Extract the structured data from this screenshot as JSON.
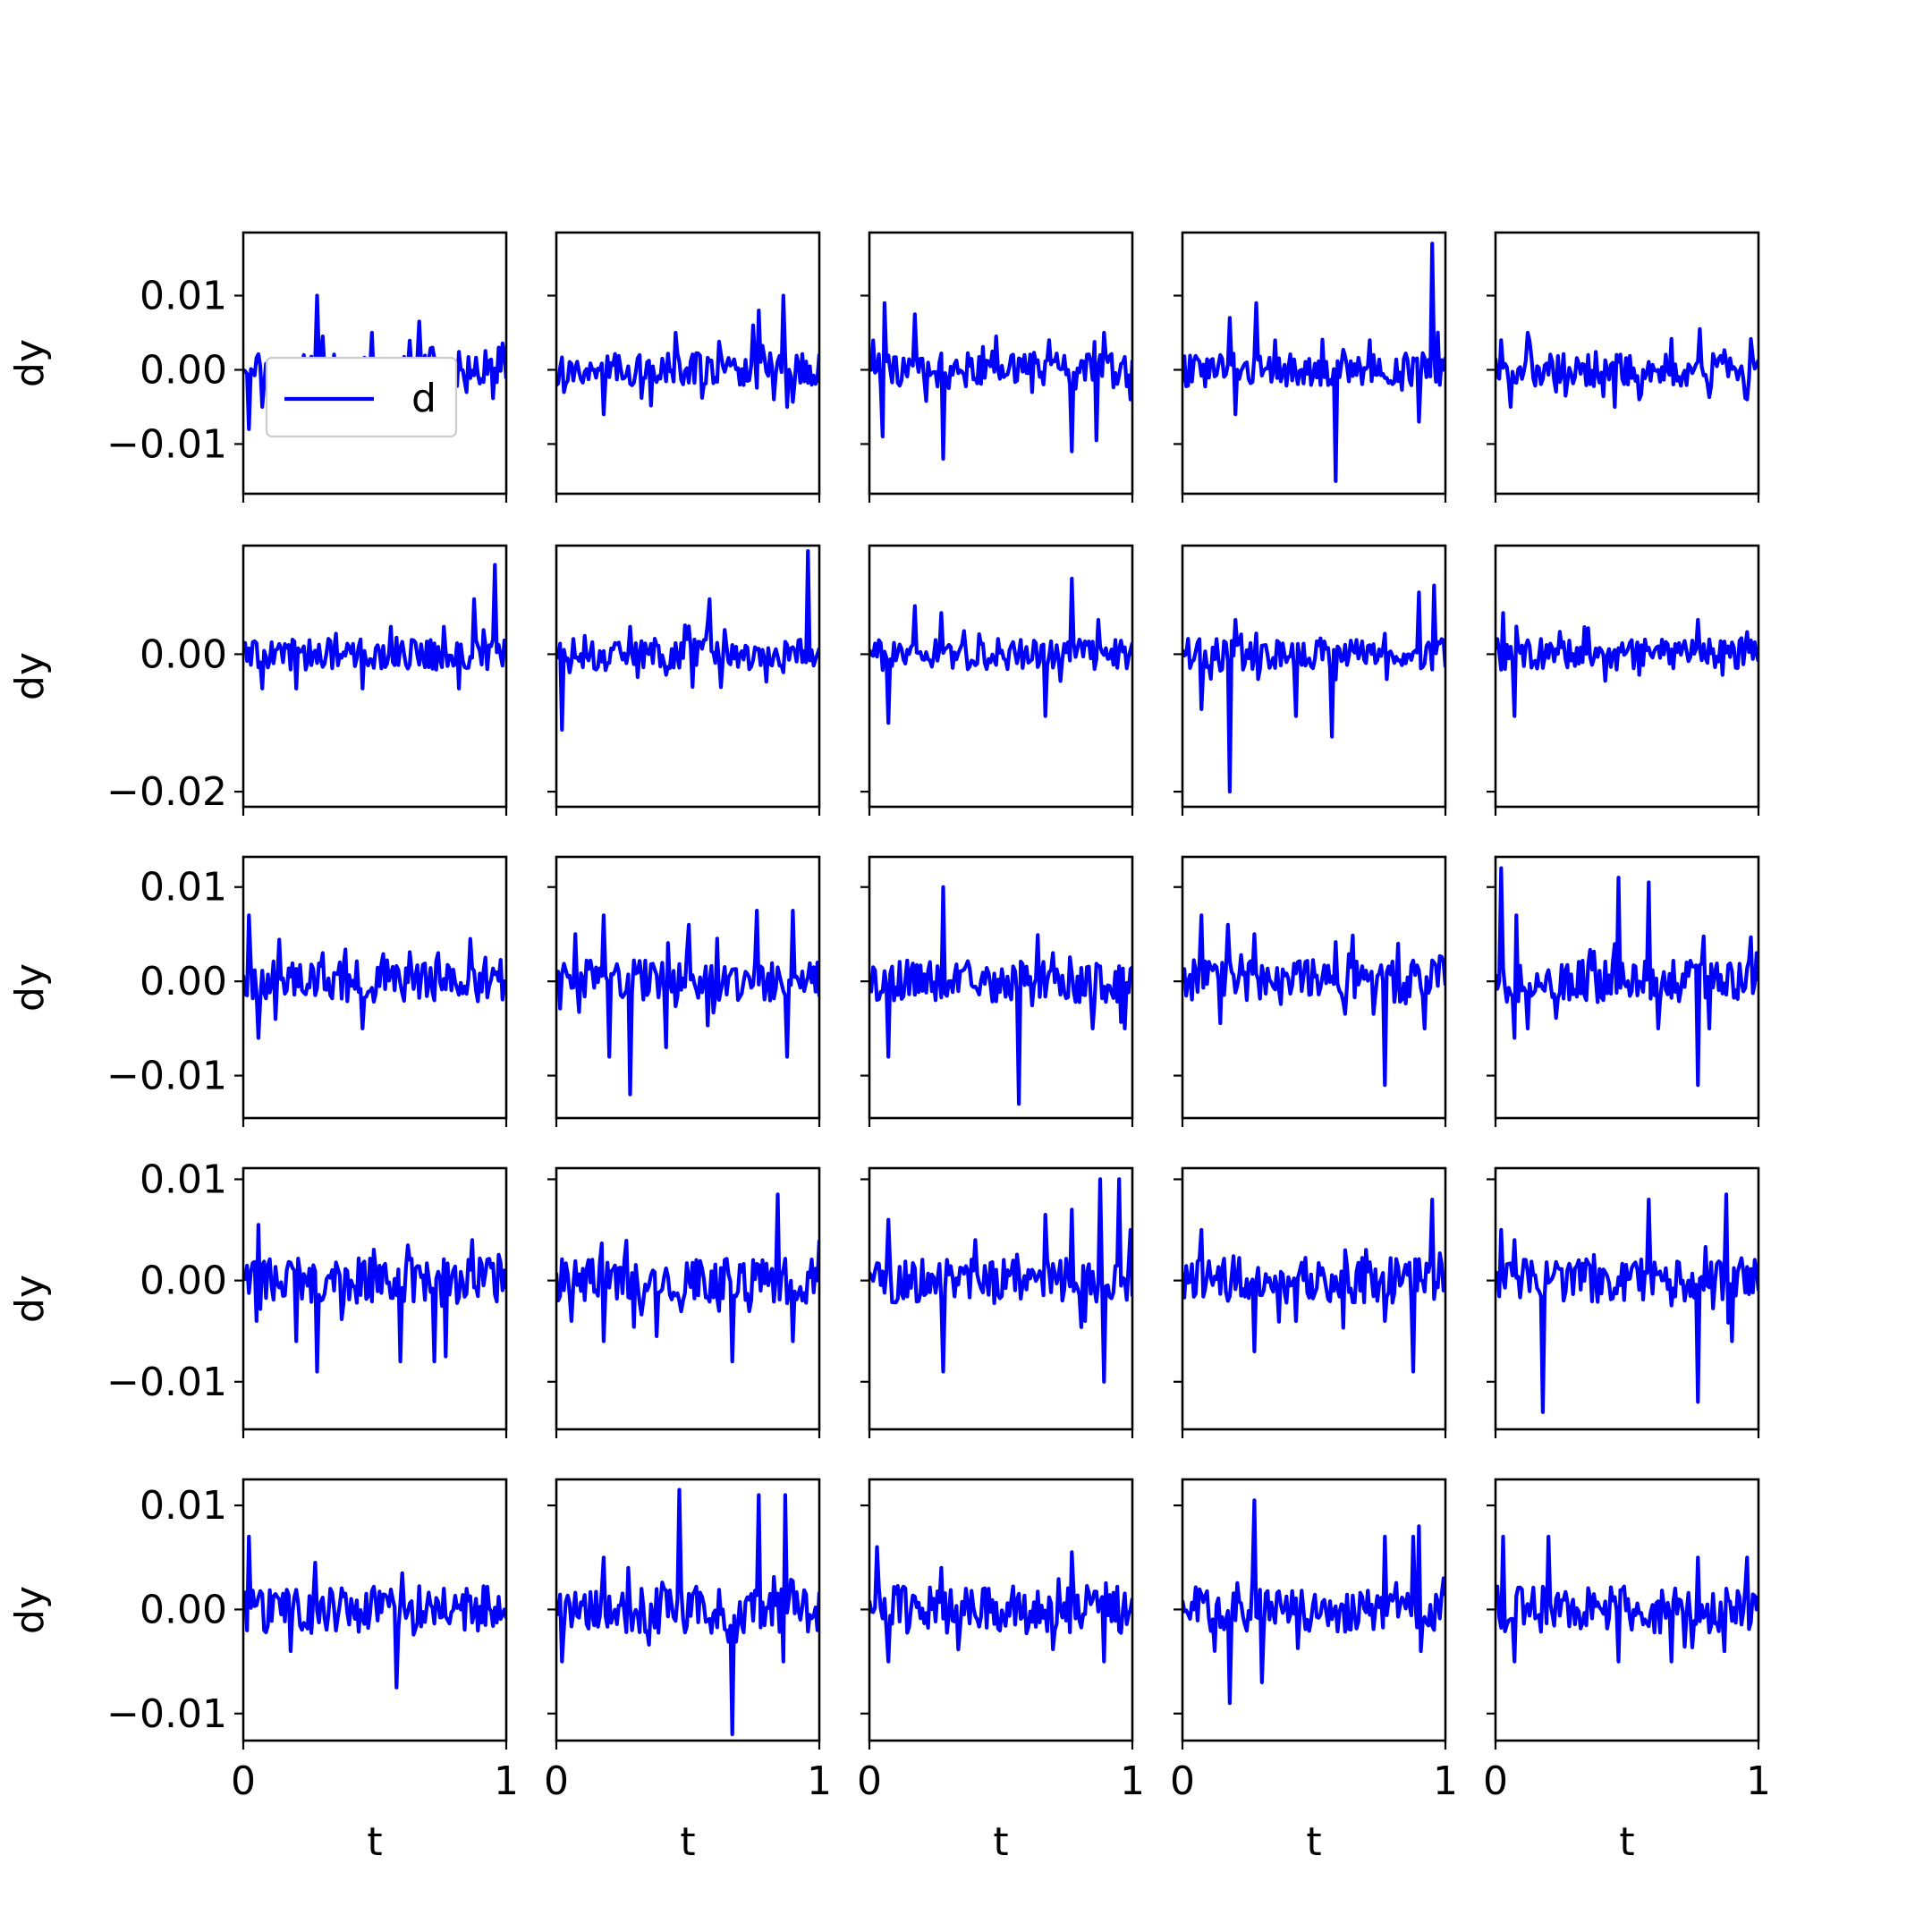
{
  "figure": {
    "xlabel": "t",
    "ylabel": "dy",
    "legend_label": "d",
    "line_color": "#0000ff"
  },
  "chart_data": {
    "type": "line",
    "layout": "5x5 grid of subplots, shared x and y axes within each row",
    "xlabel": "t",
    "ylabel": "dy",
    "xlim": [
      0,
      1
    ],
    "xticks": [
      0,
      1
    ],
    "xtick_labels": [
      "0",
      "1"
    ],
    "legend": {
      "entries": [
        "d"
      ],
      "location": "lower-left of top-left subplot"
    },
    "rows": [
      {
        "ylim": [
          -0.0167,
          0.0185
        ],
        "yticks": [
          -0.01,
          0.0,
          0.01
        ],
        "ytick_labels": [
          "−0.01",
          "0.00",
          "0.01"
        ]
      },
      {
        "ylim": [
          -0.0222,
          0.0158
        ],
        "yticks": [
          -0.02,
          0.0
        ],
        "ytick_labels": [
          "−0.02",
          "0.00"
        ]
      },
      {
        "ylim": [
          -0.0145,
          0.0132
        ],
        "yticks": [
          -0.01,
          0.0,
          0.01
        ],
        "ytick_labels": [
          "−0.01",
          "0.00",
          "0.01"
        ]
      },
      {
        "ylim": [
          -0.0147,
          0.0111
        ],
        "yticks": [
          -0.01,
          0.0,
          0.01
        ],
        "ytick_labels": [
          "−0.01",
          "0.00",
          "0.01"
        ]
      },
      {
        "ylim": [
          -0.0126,
          0.0125
        ],
        "yticks": [
          -0.01,
          0.0,
          0.01
        ],
        "ytick_labels": [
          "−0.01",
          "0.00",
          "0.01"
        ]
      }
    ],
    "series": [
      {
        "row": 0,
        "col": 0,
        "name": "d",
        "spikes": [
          [
            0.0,
            0.0
          ],
          [
            0.02,
            -0.008
          ],
          [
            0.07,
            -0.005
          ],
          [
            0.17,
            -0.003
          ],
          [
            0.28,
            0.01
          ],
          [
            0.3,
            0.0045
          ],
          [
            0.49,
            0.005
          ],
          [
            0.67,
            0.0065
          ],
          [
            0.72,
            0.003
          ],
          [
            0.85,
            -0.003
          ],
          [
            0.97,
            0.003
          ]
        ]
      },
      {
        "row": 0,
        "col": 1,
        "name": "d",
        "spikes": [
          [
            0.03,
            -0.003
          ],
          [
            0.18,
            -0.006
          ],
          [
            0.45,
            0.005
          ],
          [
            0.7,
            -0.002
          ],
          [
            0.75,
            0.006
          ],
          [
            0.77,
            0.008
          ],
          [
            0.83,
            -0.004
          ],
          [
            0.86,
            0.01
          ],
          [
            0.88,
            -0.005
          ],
          [
            0.97,
            -0.002
          ]
        ]
      },
      {
        "row": 0,
        "col": 2,
        "name": "d",
        "spikes": [
          [
            0.06,
            0.009
          ],
          [
            0.05,
            -0.009
          ],
          [
            0.17,
            0.0075
          ],
          [
            0.28,
            -0.012
          ],
          [
            0.48,
            0.0045
          ],
          [
            0.62,
            -0.003
          ],
          [
            0.68,
            0.004
          ],
          [
            0.77,
            -0.011
          ],
          [
            0.86,
            -0.0095
          ],
          [
            0.89,
            0.005
          ],
          [
            0.99,
            -0.004
          ]
        ]
      },
      {
        "row": 0,
        "col": 3,
        "name": "d",
        "spikes": [
          [
            0.18,
            0.007
          ],
          [
            0.2,
            -0.006
          ],
          [
            0.28,
            0.009
          ],
          [
            0.58,
            -0.015
          ],
          [
            0.9,
            -0.007
          ],
          [
            0.95,
            0.017
          ],
          [
            0.99,
            0.0
          ]
        ]
      },
      {
        "row": 0,
        "col": 4,
        "name": "d",
        "spikes": [
          [
            0.02,
            0.004
          ],
          [
            0.06,
            -0.005
          ],
          [
            0.12,
            0.005
          ],
          [
            0.45,
            -0.005
          ],
          [
            0.55,
            -0.004
          ],
          [
            0.78,
            0.0055
          ],
          [
            0.96,
            -0.004
          ]
        ]
      },
      {
        "row": 1,
        "col": 0,
        "name": "d",
        "spikes": [
          [
            0.07,
            -0.005
          ],
          [
            0.2,
            -0.005
          ],
          [
            0.35,
            0.003
          ],
          [
            0.45,
            -0.005
          ],
          [
            0.56,
            0.004
          ],
          [
            0.76,
            0.004
          ],
          [
            0.82,
            -0.005
          ],
          [
            0.88,
            0.008
          ],
          [
            0.96,
            0.013
          ],
          [
            0.99,
            0.002
          ]
        ]
      },
      {
        "row": 1,
        "col": 1,
        "name": "d",
        "spikes": [
          [
            0.02,
            -0.011
          ],
          [
            0.28,
            0.004
          ],
          [
            0.42,
            -0.003
          ],
          [
            0.58,
            0.008
          ],
          [
            0.8,
            -0.004
          ],
          [
            0.96,
            0.015
          ],
          [
            0.99,
            0.0
          ]
        ]
      },
      {
        "row": 1,
        "col": 2,
        "name": "d",
        "spikes": [
          [
            0.07,
            -0.01
          ],
          [
            0.17,
            0.007
          ],
          [
            0.27,
            0.006
          ],
          [
            0.32,
            -0.002
          ],
          [
            0.58,
            -0.002
          ],
          [
            0.67,
            -0.009
          ],
          [
            0.77,
            0.011
          ],
          [
            0.87,
            0.005
          ],
          [
            0.97,
            0.001
          ]
        ]
      },
      {
        "row": 1,
        "col": 3,
        "name": "d",
        "spikes": [
          [
            0.07,
            -0.008
          ],
          [
            0.18,
            -0.02
          ],
          [
            0.2,
            0.005
          ],
          [
            0.43,
            -0.009
          ],
          [
            0.57,
            -0.012
          ],
          [
            0.77,
            0.003
          ],
          [
            0.9,
            0.009
          ],
          [
            0.96,
            0.01
          ],
          [
            0.99,
            0.002
          ]
        ]
      },
      {
        "row": 1,
        "col": 4,
        "name": "d",
        "spikes": [
          [
            0.03,
            0.006
          ],
          [
            0.07,
            -0.009
          ],
          [
            0.18,
            -0.002
          ],
          [
            0.55,
            -0.003
          ],
          [
            0.77,
            0.005
          ],
          [
            0.86,
            -0.003
          ],
          [
            0.97,
            0.002
          ]
        ]
      },
      {
        "row": 2,
        "col": 0,
        "name": "d",
        "spikes": [
          [
            0.02,
            0.007
          ],
          [
            0.06,
            -0.006
          ],
          [
            0.12,
            -0.004
          ],
          [
            0.3,
            0.003
          ],
          [
            0.45,
            -0.005
          ],
          [
            0.74,
            0.003
          ],
          [
            0.86,
            0.0045
          ],
          [
            0.99,
            0.0
          ]
        ]
      },
      {
        "row": 2,
        "col": 1,
        "name": "d",
        "spikes": [
          [
            0.07,
            0.005
          ],
          [
            0.18,
            0.007
          ],
          [
            0.2,
            -0.008
          ],
          [
            0.28,
            -0.012
          ],
          [
            0.42,
            -0.007
          ],
          [
            0.5,
            0.006
          ],
          [
            0.76,
            0.0075
          ],
          [
            0.88,
            -0.008
          ],
          [
            0.9,
            0.0075
          ],
          [
            0.99,
            0.002
          ]
        ]
      },
      {
        "row": 2,
        "col": 2,
        "name": "d",
        "spikes": [
          [
            0.07,
            -0.008
          ],
          [
            0.28,
            0.01
          ],
          [
            0.3,
            0.0
          ],
          [
            0.57,
            -0.013
          ],
          [
            0.7,
            0.003
          ],
          [
            0.85,
            -0.005
          ],
          [
            0.97,
            -0.005
          ]
        ]
      },
      {
        "row": 2,
        "col": 3,
        "name": "d",
        "spikes": [
          [
            0.07,
            0.007
          ],
          [
            0.17,
            0.006
          ],
          [
            0.27,
            0.005
          ],
          [
            0.77,
            -0.011
          ],
          [
            0.82,
            0.004
          ],
          [
            0.92,
            -0.005
          ],
          [
            0.99,
            0.002
          ]
        ]
      },
      {
        "row": 2,
        "col": 4,
        "name": "d",
        "spikes": [
          [
            0.02,
            0.012
          ],
          [
            0.07,
            -0.006
          ],
          [
            0.08,
            0.007
          ],
          [
            0.12,
            -0.005
          ],
          [
            0.47,
            0.011
          ],
          [
            0.58,
            0.0105
          ],
          [
            0.62,
            -0.005
          ],
          [
            0.77,
            -0.011
          ],
          [
            0.81,
            -0.005
          ],
          [
            0.99,
            0.003
          ]
        ]
      },
      {
        "row": 3,
        "col": 0,
        "name": "d",
        "spikes": [
          [
            0.06,
            0.0055
          ],
          [
            0.05,
            -0.004
          ],
          [
            0.2,
            -0.006
          ],
          [
            0.28,
            -0.009
          ],
          [
            0.6,
            -0.008
          ],
          [
            0.73,
            -0.008
          ],
          [
            0.77,
            -0.0075
          ],
          [
            0.87,
            0.004
          ],
          [
            0.99,
            0.001
          ]
        ]
      },
      {
        "row": 3,
        "col": 1,
        "name": "d",
        "spikes": [
          [
            0.06,
            -0.004
          ],
          [
            0.18,
            -0.006
          ],
          [
            0.38,
            -0.0055
          ],
          [
            0.62,
            -0.003
          ],
          [
            0.67,
            -0.008
          ],
          [
            0.84,
            0.0085
          ],
          [
            0.9,
            -0.006
          ],
          [
            0.99,
            0.0
          ]
        ]
      },
      {
        "row": 3,
        "col": 2,
        "name": "d",
        "spikes": [
          [
            0.07,
            0.006
          ],
          [
            0.28,
            -0.009
          ],
          [
            0.4,
            0.004
          ],
          [
            0.67,
            0.0065
          ],
          [
            0.77,
            0.007
          ],
          [
            0.82,
            -0.004
          ],
          [
            0.89,
            -0.01
          ],
          [
            0.88,
            0.01
          ],
          [
            0.95,
            0.01
          ],
          [
            0.99,
            0.005
          ]
        ]
      },
      {
        "row": 3,
        "col": 3,
        "name": "d",
        "spikes": [
          [
            0.07,
            0.005
          ],
          [
            0.27,
            -0.007
          ],
          [
            0.43,
            -0.004
          ],
          [
            0.62,
            0.003
          ],
          [
            0.77,
            -0.004
          ],
          [
            0.88,
            -0.009
          ],
          [
            0.95,
            0.008
          ],
          [
            0.99,
            -0.001
          ]
        ]
      },
      {
        "row": 3,
        "col": 4,
        "name": "d",
        "spikes": [
          [
            0.02,
            0.005
          ],
          [
            0.07,
            0.004
          ],
          [
            0.18,
            -0.013
          ],
          [
            0.58,
            0.008
          ],
          [
            0.77,
            -0.012
          ],
          [
            0.88,
            0.0085
          ],
          [
            0.9,
            -0.006
          ],
          [
            0.99,
            0.001
          ]
        ]
      },
      {
        "row": 4,
        "col": 0,
        "name": "d",
        "spikes": [
          [
            0.02,
            0.007
          ],
          [
            0.08,
            -0.002
          ],
          [
            0.18,
            -0.004
          ],
          [
            0.27,
            0.0045
          ],
          [
            0.58,
            -0.0075
          ],
          [
            0.85,
            0.002
          ],
          [
            0.99,
            0.0
          ]
        ]
      },
      {
        "row": 4,
        "col": 1,
        "name": "d",
        "spikes": [
          [
            0.02,
            -0.005
          ],
          [
            0.18,
            0.005
          ],
          [
            0.27,
            0.004
          ],
          [
            0.47,
            0.0115
          ],
          [
            0.67,
            -0.012
          ],
          [
            0.77,
            0.011
          ],
          [
            0.87,
            0.011
          ],
          [
            0.86,
            -0.005
          ],
          [
            0.99,
            -0.002
          ]
        ]
      },
      {
        "row": 4,
        "col": 2,
        "name": "d",
        "spikes": [
          [
            0.03,
            0.006
          ],
          [
            0.07,
            -0.005
          ],
          [
            0.27,
            0.004
          ],
          [
            0.45,
            0.002
          ],
          [
            0.77,
            0.0055
          ],
          [
            0.89,
            -0.005
          ],
          [
            0.99,
            0.0
          ]
        ]
      },
      {
        "row": 4,
        "col": 3,
        "name": "d",
        "spikes": [
          [
            0.18,
            -0.009
          ],
          [
            0.27,
            0.0105
          ],
          [
            0.3,
            -0.007
          ],
          [
            0.77,
            0.007
          ],
          [
            0.88,
            0.007
          ],
          [
            0.9,
            0.008
          ],
          [
            0.91,
            -0.004
          ],
          [
            0.99,
            0.003
          ]
        ]
      },
      {
        "row": 4,
        "col": 4,
        "name": "d",
        "spikes": [
          [
            0.03,
            0.007
          ],
          [
            0.07,
            -0.005
          ],
          [
            0.2,
            0.007
          ],
          [
            0.47,
            -0.005
          ],
          [
            0.67,
            -0.005
          ],
          [
            0.77,
            0.005
          ],
          [
            0.87,
            -0.004
          ],
          [
            0.96,
            0.005
          ],
          [
            0.99,
            0.0
          ]
        ]
      }
    ]
  }
}
